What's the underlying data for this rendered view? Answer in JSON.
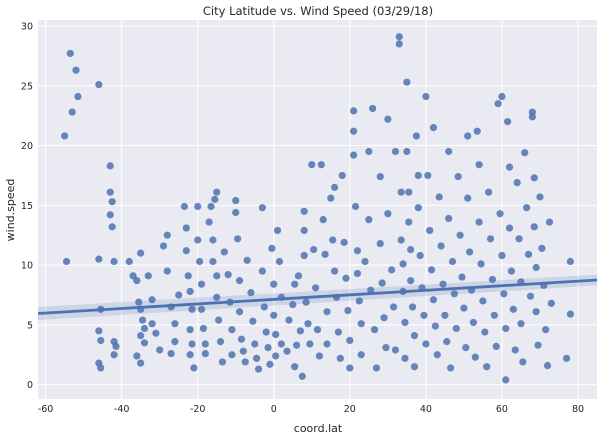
{
  "chart_data": {
    "type": "scatter",
    "title": "City Latitude vs. Wind Speed (03/29/18)",
    "xlabel": "coord.lat",
    "ylabel": "wind.speed",
    "xlim": [
      -62,
      85
    ],
    "ylim": [
      -1.2,
      30.5
    ],
    "xticks": [
      "-60",
      "-40",
      "-20",
      "0",
      "20",
      "40",
      "60",
      "80"
    ],
    "yticks": [
      "0",
      "5",
      "10",
      "15",
      "20",
      "25",
      "30"
    ],
    "xtick_values": [
      -60,
      -40,
      -20,
      0,
      20,
      40,
      60,
      80
    ],
    "ytick_values": [
      0,
      5,
      10,
      15,
      20,
      25,
      30
    ],
    "grid": true,
    "background": "#eaeaf2",
    "point_color": "#4c72b0",
    "line_color": "#4c72b0",
    "regression": {
      "x": [
        -62,
        85
      ],
      "y": [
        5.95,
        8.75
      ],
      "ci": [
        0.55,
        0.45
      ]
    },
    "points": [
      [
        -55,
        20.8
      ],
      [
        -54.5,
        10.3
      ],
      [
        -53.5,
        27.7
      ],
      [
        -53,
        22.8
      ],
      [
        -52,
        26.3
      ],
      [
        -51.5,
        24.1
      ],
      [
        -46,
        25.1
      ],
      [
        -46,
        10.5
      ],
      [
        -45.5,
        6.3
      ],
      [
        -46,
        4.5
      ],
      [
        -45.5,
        3.7
      ],
      [
        -46,
        1.8
      ],
      [
        -45.5,
        1.4
      ],
      [
        -43,
        18.3
      ],
      [
        -43,
        16.1
      ],
      [
        -42.5,
        15.3
      ],
      [
        -43,
        14.2
      ],
      [
        -42.5,
        13.2
      ],
      [
        -42,
        10.3
      ],
      [
        -42,
        3.6
      ],
      [
        -41.5,
        3.2
      ],
      [
        -42,
        2.5
      ],
      [
        -38,
        10.3
      ],
      [
        -37,
        9.1
      ],
      [
        -36,
        8.7
      ],
      [
        -35,
        11
      ],
      [
        -35.5,
        6.9
      ],
      [
        -35,
        6.3
      ],
      [
        -34.5,
        5.4
      ],
      [
        -34,
        4.7
      ],
      [
        -35,
        4.1
      ],
      [
        -34,
        3.5
      ],
      [
        -36,
        2.4
      ],
      [
        -35,
        1.8
      ],
      [
        -33,
        9.1
      ],
      [
        -32,
        7.1
      ],
      [
        -32,
        5.1
      ],
      [
        -31,
        4.3
      ],
      [
        -30,
        2.9
      ],
      [
        -29,
        11.6
      ],
      [
        -28,
        12.5
      ],
      [
        -28,
        9.5
      ],
      [
        -27,
        6.5
      ],
      [
        -26,
        5.1
      ],
      [
        -26,
        3.6
      ],
      [
        -27,
        2.6
      ],
      [
        -25,
        7.5
      ],
      [
        -23.5,
        14.9
      ],
      [
        -23,
        13.1
      ],
      [
        -23,
        11.2
      ],
      [
        -22.5,
        9.1
      ],
      [
        -22,
        7.8
      ],
      [
        -21.5,
        6.3
      ],
      [
        -22,
        4.6
      ],
      [
        -21.5,
        3.4
      ],
      [
        -22,
        2.5
      ],
      [
        -21,
        1.4
      ],
      [
        -20,
        14.9
      ],
      [
        -20,
        12.1
      ],
      [
        -19.5,
        10.3
      ],
      [
        -19,
        8.4
      ],
      [
        -19,
        6.3
      ],
      [
        -18.5,
        4.7
      ],
      [
        -18,
        3.4
      ],
      [
        -18,
        2.6
      ],
      [
        -17,
        13.6
      ],
      [
        -16.5,
        14.9
      ],
      [
        -16,
        12.1
      ],
      [
        -16,
        10.3
      ],
      [
        -15.5,
        15.5
      ],
      [
        -15,
        16.1
      ],
      [
        -15,
        9.1
      ],
      [
        -15,
        7.3
      ],
      [
        -14.5,
        5.4
      ],
      [
        -14,
        3.6
      ],
      [
        -13.5,
        1.9
      ],
      [
        -13,
        11.1
      ],
      [
        -12,
        9.2
      ],
      [
        -11.5,
        6.9
      ],
      [
        -11,
        4.6
      ],
      [
        -11,
        2.5
      ],
      [
        -10,
        14.4
      ],
      [
        -10,
        15.4
      ],
      [
        -9.5,
        12.2
      ],
      [
        -9,
        8.7
      ],
      [
        -9,
        6.1
      ],
      [
        -8.5,
        3.8
      ],
      [
        -8,
        2.8
      ],
      [
        -7.5,
        1.9
      ],
      [
        -7,
        10.4
      ],
      [
        -6,
        7.7
      ],
      [
        -5.5,
        5.3
      ],
      [
        -5,
        3.4
      ],
      [
        -4.5,
        2.2
      ],
      [
        -4,
        1.3
      ],
      [
        -3,
        9.5
      ],
      [
        -3,
        14.8
      ],
      [
        -2.5,
        6.5
      ],
      [
        -2,
        4.4
      ],
      [
        -1.5,
        3.1
      ],
      [
        -1,
        1.7
      ],
      [
        -0.5,
        11.4
      ],
      [
        0,
        8.4
      ],
      [
        0,
        5.8
      ],
      [
        0.5,
        4.2
      ],
      [
        0.5,
        2.4
      ],
      [
        1,
        12.9
      ],
      [
        1.5,
        10.3
      ],
      [
        2,
        7.3
      ],
      [
        2,
        3.4
      ],
      [
        3.5,
        2.8
      ],
      [
        4,
        5.4
      ],
      [
        5,
        6.7
      ],
      [
        5.5,
        8.4
      ],
      [
        5.5,
        1.5
      ],
      [
        6,
        3.3
      ],
      [
        6.5,
        9.1
      ],
      [
        7,
        4.5
      ],
      [
        7.5,
        0.7
      ],
      [
        8,
        12.9
      ],
      [
        8,
        14.5
      ],
      [
        8,
        10.8
      ],
      [
        8.5,
        6.9
      ],
      [
        9,
        5.1
      ],
      [
        9.5,
        3.4
      ],
      [
        10,
        18.4
      ],
      [
        10.5,
        11.3
      ],
      [
        11,
        8.1
      ],
      [
        11.5,
        4.6
      ],
      [
        12,
        2.4
      ],
      [
        12.5,
        18.4
      ],
      [
        13,
        13.8
      ],
      [
        13.5,
        10.9
      ],
      [
        14,
        6.1
      ],
      [
        14,
        3.4
      ],
      [
        15,
        15.6
      ],
      [
        15.5,
        12.1
      ],
      [
        16,
        9.5
      ],
      [
        16,
        16.5
      ],
      [
        16.5,
        7.3
      ],
      [
        17,
        4.4
      ],
      [
        17.5,
        2.2
      ],
      [
        18,
        17.5
      ],
      [
        18.5,
        11.9
      ],
      [
        19,
        8.9
      ],
      [
        19.5,
        6.2
      ],
      [
        20,
        3.7
      ],
      [
        20,
        1.4
      ],
      [
        21,
        22.9
      ],
      [
        21,
        21.2
      ],
      [
        21,
        19.2
      ],
      [
        21.5,
        14.9
      ],
      [
        22,
        11.2
      ],
      [
        22,
        9.3
      ],
      [
        22.5,
        7
      ],
      [
        23,
        5.1
      ],
      [
        23,
        2.5
      ],
      [
        24,
        10.3
      ],
      [
        25,
        19.5
      ],
      [
        25,
        13.8
      ],
      [
        25.5,
        7.9
      ],
      [
        26,
        23.1
      ],
      [
        26.5,
        4.6
      ],
      [
        27,
        1.4
      ],
      [
        28,
        17.4
      ],
      [
        28,
        11.8
      ],
      [
        28.5,
        8.5
      ],
      [
        29,
        5.6
      ],
      [
        29.5,
        3.1
      ],
      [
        30,
        22.2
      ],
      [
        30,
        14.3
      ],
      [
        31,
        9.6
      ],
      [
        31.5,
        6.5
      ],
      [
        32,
        19.5
      ],
      [
        32,
        2.9
      ],
      [
        33,
        29.1
      ],
      [
        33,
        28.5
      ],
      [
        33.5,
        16.1
      ],
      [
        33.5,
        12.1
      ],
      [
        34,
        10.1
      ],
      [
        34,
        7.8
      ],
      [
        34.5,
        5.2
      ],
      [
        34.5,
        2.2
      ],
      [
        35,
        25.3
      ],
      [
        35,
        19.5
      ],
      [
        35.5,
        16.1
      ],
      [
        35.5,
        13.6
      ],
      [
        36,
        11.3
      ],
      [
        36,
        8.7
      ],
      [
        36.5,
        6.5
      ],
      [
        37,
        4.1
      ],
      [
        37,
        1.5
      ],
      [
        37.5,
        20.8
      ],
      [
        38,
        17.5
      ],
      [
        38,
        14.8
      ],
      [
        38.5,
        10.8
      ],
      [
        39,
        8.1
      ],
      [
        39.5,
        5.8
      ],
      [
        40,
        24.1
      ],
      [
        40,
        3.4
      ],
      [
        40.5,
        17.5
      ],
      [
        41,
        12.9
      ],
      [
        41.5,
        9.6
      ],
      [
        42,
        21.5
      ],
      [
        42,
        7.1
      ],
      [
        42.5,
        4.9
      ],
      [
        43,
        2.5
      ],
      [
        43.5,
        15.7
      ],
      [
        44,
        11.6
      ],
      [
        44.5,
        8.4
      ],
      [
        45,
        5.8
      ],
      [
        45.5,
        3.6
      ],
      [
        46,
        19.5
      ],
      [
        46,
        13.9
      ],
      [
        46.5,
        1.4
      ],
      [
        47,
        10.3
      ],
      [
        47.5,
        7.6
      ],
      [
        48,
        4.7
      ],
      [
        48.5,
        17.4
      ],
      [
        49,
        12.5
      ],
      [
        49.5,
        9
      ],
      [
        50,
        6.4
      ],
      [
        50.5,
        3.1
      ],
      [
        51,
        20.8
      ],
      [
        51,
        15.6
      ],
      [
        51.5,
        11.1
      ],
      [
        52,
        7.9
      ],
      [
        52.5,
        5.2
      ],
      [
        53,
        2.3
      ],
      [
        53.5,
        21.2
      ],
      [
        54,
        18.4
      ],
      [
        54,
        13.6
      ],
      [
        54.5,
        10.1
      ],
      [
        55,
        7
      ],
      [
        55.5,
        4.4
      ],
      [
        56,
        1.5
      ],
      [
        56.5,
        16.1
      ],
      [
        57,
        12.2
      ],
      [
        57.5,
        8.8
      ],
      [
        58,
        5.8
      ],
      [
        58.5,
        3.2
      ],
      [
        59,
        23.5
      ],
      [
        59.5,
        14.3
      ],
      [
        60,
        10.8
      ],
      [
        60,
        24.1
      ],
      [
        60.5,
        7.6
      ],
      [
        61,
        4.7
      ],
      [
        61,
        0.4
      ],
      [
        61.5,
        22
      ],
      [
        62,
        18.2
      ],
      [
        62,
        13.1
      ],
      [
        62.5,
        9.5
      ],
      [
        63,
        6.3
      ],
      [
        63.5,
        2.9
      ],
      [
        64,
        16.9
      ],
      [
        64.5,
        12.2
      ],
      [
        65,
        8.6
      ],
      [
        65,
        5.1
      ],
      [
        65.5,
        1.9
      ],
      [
        66,
        19.4
      ],
      [
        66.5,
        14.8
      ],
      [
        67,
        10.9
      ],
      [
        67.5,
        7.4
      ],
      [
        68,
        22.8
      ],
      [
        68,
        22.4
      ],
      [
        68.5,
        17.3
      ],
      [
        68.5,
        13.2
      ],
      [
        69,
        9.8
      ],
      [
        69,
        6.1
      ],
      [
        69.5,
        3.3
      ],
      [
        70,
        15.7
      ],
      [
        70.5,
        11.4
      ],
      [
        71,
        8.3
      ],
      [
        71.5,
        4.6
      ],
      [
        72,
        1.6
      ],
      [
        72.5,
        13.6
      ],
      [
        73,
        6.8
      ],
      [
        77,
        2.2
      ],
      [
        78,
        10.3
      ],
      [
        78,
        5.9
      ]
    ]
  }
}
